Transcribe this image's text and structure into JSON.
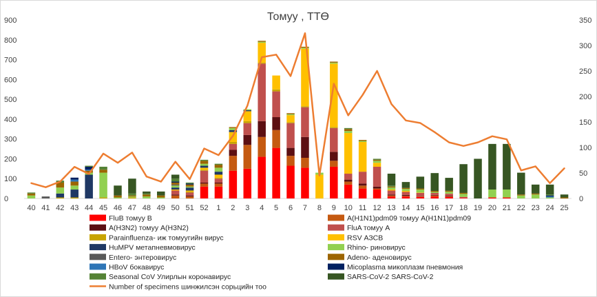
{
  "chart_data": {
    "type": "bar",
    "stacked": true,
    "title": "Томуу , ТТӨ",
    "xlabel": "",
    "ylabel": "",
    "categories": [
      "40",
      "41",
      "42",
      "43",
      "44",
      "45",
      "46",
      "47",
      "48",
      "49",
      "50",
      "51",
      "52",
      "1",
      "2",
      "3",
      "4",
      "5",
      "6",
      "7",
      "8",
      "9",
      "10",
      "11",
      "12",
      "13",
      "14",
      "15",
      "16",
      "17",
      "18",
      "19",
      "20",
      "21",
      "22",
      "23",
      "24",
      "25"
    ],
    "ylim": [
      0,
      900
    ],
    "y_ticks": [
      0,
      100,
      200,
      300,
      400,
      500,
      600,
      700,
      800,
      900
    ],
    "y2lim": [
      0,
      350
    ],
    "y2_ticks": [
      0,
      50,
      100,
      150,
      200,
      250,
      300,
      350
    ],
    "grid": false,
    "legend_position": "bottom",
    "series": [
      {
        "name": "FluB томуу В",
        "color": "#ff0000",
        "values": [
          0,
          0,
          0,
          0,
          0,
          0,
          0,
          0,
          0,
          0,
          0,
          0,
          60,
          60,
          140,
          150,
          210,
          255,
          165,
          155,
          0,
          160,
          70,
          50,
          45,
          10,
          10,
          8,
          10,
          8,
          3,
          0,
          5,
          5,
          0,
          0,
          0,
          0
        ]
      },
      {
        "name": "A(H1N1)pdm09 томуу A(H1N1)pdm09",
        "color": "#c55a11",
        "values": [
          0,
          0,
          0,
          0,
          0,
          0,
          0,
          0,
          0,
          0,
          15,
          10,
          15,
          15,
          75,
          120,
          100,
          90,
          50,
          50,
          0,
          30,
          15,
          15,
          5,
          5,
          3,
          3,
          5,
          3,
          0,
          0,
          0,
          0,
          0,
          0,
          0,
          0
        ]
      },
      {
        "name": "A(H3N2) томуу A(H3N2)",
        "color": "#5c0f12",
        "values": [
          0,
          0,
          0,
          0,
          0,
          0,
          0,
          0,
          0,
          0,
          5,
          5,
          5,
          5,
          30,
          50,
          80,
          65,
          40,
          105,
          0,
          45,
          10,
          10,
          10,
          5,
          5,
          2,
          3,
          3,
          0,
          0,
          0,
          0,
          0,
          0,
          0,
          0
        ]
      },
      {
        "name": "FluA томуу А",
        "color": "#c0504d",
        "values": [
          0,
          0,
          0,
          0,
          0,
          0,
          0,
          0,
          0,
          0,
          20,
          15,
          60,
          20,
          30,
          60,
          290,
          130,
          125,
          150,
          0,
          120,
          30,
          60,
          100,
          20,
          15,
          15,
          10,
          10,
          5,
          0,
          0,
          0,
          0,
          0,
          0,
          0
        ]
      },
      {
        "name": "Parainfluenza- иж томуугийн вирус",
        "color": "#c8a400",
        "values": [
          0,
          0,
          5,
          5,
          0,
          5,
          0,
          5,
          0,
          0,
          0,
          5,
          5,
          5,
          10,
          10,
          5,
          10,
          5,
          5,
          0,
          5,
          0,
          0,
          0,
          0,
          0,
          0,
          0,
          0,
          0,
          0,
          0,
          0,
          0,
          0,
          0,
          0
        ]
      },
      {
        "name": "RSV АЗСВ",
        "color": "#ffc000",
        "values": [
          0,
          0,
          0,
          0,
          0,
          0,
          0,
          0,
          0,
          0,
          5,
          5,
          10,
          15,
          50,
          50,
          100,
          70,
          35,
          290,
          120,
          320,
          205,
          150,
          20,
          5,
          5,
          2,
          0,
          0,
          0,
          0,
          0,
          0,
          0,
          0,
          0,
          0
        ]
      },
      {
        "name": "HuMPV метапневмовирус",
        "color": "#1f3864",
        "values": [
          0,
          0,
          20,
          40,
          120,
          0,
          0,
          0,
          0,
          0,
          10,
          15,
          10,
          15,
          10,
          5,
          0,
          0,
          0,
          0,
          0,
          0,
          0,
          0,
          0,
          0,
          0,
          0,
          0,
          0,
          0,
          0,
          0,
          0,
          0,
          0,
          0,
          0
        ]
      },
      {
        "name": "Rhino- риновирус",
        "color": "#92d050",
        "values": [
          15,
          0,
          30,
          20,
          10,
          125,
          5,
          5,
          10,
          5,
          10,
          5,
          10,
          20,
          10,
          5,
          5,
          0,
          5,
          5,
          10,
          5,
          10,
          5,
          10,
          10,
          10,
          15,
          5,
          10,
          15,
          0,
          40,
          40,
          15,
          20,
          5,
          0
        ]
      },
      {
        "name": "Entero- энтеровирус",
        "color": "#595959",
        "values": [
          0,
          10,
          0,
          0,
          0,
          0,
          0,
          0,
          0,
          0,
          5,
          0,
          0,
          0,
          0,
          0,
          0,
          0,
          0,
          0,
          0,
          0,
          0,
          0,
          0,
          0,
          0,
          0,
          0,
          0,
          0,
          0,
          0,
          0,
          0,
          0,
          0,
          0
        ]
      },
      {
        "name": "Adeno- аденовирус",
        "color": "#9c6500",
        "values": [
          10,
          0,
          25,
          20,
          10,
          15,
          10,
          5,
          10,
          10,
          10,
          10,
          15,
          15,
          5,
          0,
          5,
          0,
          5,
          5,
          0,
          5,
          10,
          5,
          5,
          5,
          5,
          5,
          5,
          5,
          5,
          0,
          0,
          0,
          5,
          5,
          0,
          5
        ]
      },
      {
        "name": "HBoV бокавирус",
        "color": "#2e75b6",
        "values": [
          0,
          0,
          0,
          10,
          5,
          0,
          0,
          0,
          0,
          0,
          0,
          0,
          0,
          0,
          0,
          0,
          0,
          0,
          0,
          0,
          0,
          0,
          0,
          0,
          0,
          0,
          0,
          0,
          0,
          0,
          0,
          0,
          0,
          0,
          0,
          0,
          5,
          0
        ]
      },
      {
        "name": "Micoplasma микоплазм пневмония",
        "color": "#002060",
        "values": [
          0,
          0,
          0,
          10,
          15,
          0,
          0,
          0,
          0,
          0,
          5,
          5,
          0,
          0,
          0,
          0,
          0,
          0,
          0,
          0,
          0,
          0,
          0,
          0,
          0,
          0,
          0,
          0,
          0,
          0,
          0,
          0,
          0,
          0,
          0,
          0,
          5,
          0
        ]
      },
      {
        "name": "Seasonal CoV Улирлын коронавирус",
        "color": "#548235",
        "values": [
          5,
          0,
          10,
          0,
          5,
          15,
          0,
          10,
          5,
          0,
          15,
          5,
          5,
          5,
          0,
          0,
          0,
          0,
          0,
          0,
          0,
          0,
          5,
          0,
          5,
          5,
          0,
          0,
          0,
          0,
          0,
          0,
          0,
          0,
          0,
          0,
          5,
          0
        ]
      },
      {
        "name": "SARS-CoV-2 SARS-CoV-2",
        "color": "#375623",
        "values": [
          0,
          0,
          0,
          0,
          0,
          0,
          50,
          75,
          10,
          20,
          20,
          0,
          0,
          0,
          0,
          0,
          0,
          0,
          0,
          0,
          0,
          0,
          0,
          0,
          0,
          60,
          30,
          60,
          90,
          65,
          145,
          200,
          230,
          230,
          110,
          45,
          50,
          15
        ]
      }
    ],
    "line_series": {
      "name": "Number of specimens шинжилсэн сорьцийн тоо",
      "color": "#ed7d31",
      "axis": "right",
      "values": [
        30,
        22,
        33,
        62,
        48,
        88,
        70,
        90,
        43,
        33,
        72,
        38,
        98,
        85,
        123,
        182,
        277,
        282,
        240,
        324,
        45,
        225,
        163,
        203,
        250,
        185,
        153,
        148,
        130,
        110,
        103,
        110,
        122,
        116,
        55,
        63,
        30,
        59
      ]
    }
  }
}
